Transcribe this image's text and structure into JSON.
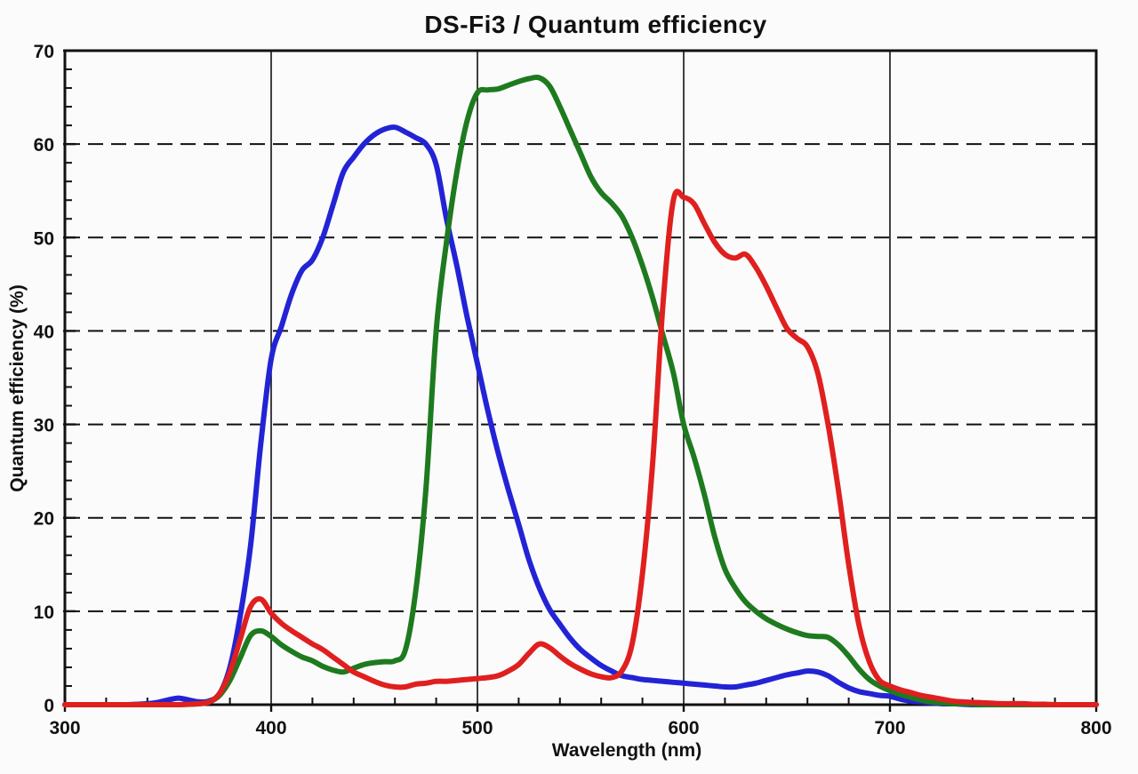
{
  "chart_data": {
    "type": "line",
    "title": "DS-Fi3 / Quantum efficiency",
    "xlabel": "Wavelength (nm)",
    "ylabel": "Quantum efficiency (%)",
    "xlim": [
      300,
      800
    ],
    "ylim": [
      0,
      70
    ],
    "x_ticks_major": [
      300,
      400,
      500,
      600,
      700,
      800
    ],
    "x_tick_labels": [
      "300",
      "400",
      "500",
      "600",
      "700",
      "800"
    ],
    "x_minor_step": 20,
    "y_ticks_major": [
      0,
      10,
      20,
      30,
      40,
      50,
      60,
      70
    ],
    "y_tick_labels": [
      "0",
      "10",
      "20",
      "30",
      "40",
      "50",
      "60",
      "70"
    ],
    "y_minor_step": 2,
    "grid": {
      "vertical_major": "solid",
      "horizontal_major": "dashed",
      "legend": "none"
    },
    "axis_color": "#111111",
    "x_start": 300,
    "x_step": 5,
    "series": [
      {
        "name": "blue-channel",
        "color": "#2323d6",
        "values": [
          0,
          0,
          0,
          0,
          0,
          0,
          0,
          0.05,
          0.1,
          0.25,
          0.5,
          0.7,
          0.5,
          0.3,
          0.4,
          1.2,
          4,
          9.5,
          17,
          28,
          37,
          40.5,
          44,
          46.5,
          47.6,
          50,
          53.5,
          57,
          58.6,
          60,
          61,
          61.6,
          61.8,
          61.3,
          60.7,
          60,
          57.8,
          52,
          47,
          41.5,
          36.5,
          31.5,
          27,
          23,
          19.3,
          15.5,
          12.5,
          10.2,
          8.6,
          7.1,
          5.9,
          5,
          4.2,
          3.6,
          3.1,
          2.9,
          2.7,
          2.6,
          2.5,
          2.4,
          2.3,
          2.2,
          2.1,
          2,
          1.9,
          1.9,
          2.1,
          2.3,
          2.6,
          2.9,
          3.2,
          3.4,
          3.6,
          3.5,
          3.1,
          2.4,
          1.8,
          1.4,
          1.2,
          1,
          0.9,
          0.6,
          0.4,
          0.3,
          0.2,
          0.1,
          0.1,
          0.05,
          0,
          0,
          0,
          0,
          0,
          0,
          0,
          0,
          0,
          0,
          0,
          0,
          0
        ]
      },
      {
        "name": "green-channel",
        "color": "#1e7a1e",
        "values": [
          0,
          0,
          0,
          0,
          0,
          0,
          0,
          0,
          0,
          0,
          0,
          0,
          0.05,
          0.1,
          0.3,
          1,
          2.6,
          5,
          7.4,
          7.9,
          7.3,
          6.4,
          5.7,
          5.1,
          4.7,
          4.1,
          3.7,
          3.5,
          3.9,
          4.3,
          4.5,
          4.6,
          4.7,
          5.8,
          12,
          23,
          40,
          49.5,
          57,
          62.5,
          65.5,
          65.8,
          65.9,
          66.3,
          66.7,
          67,
          67.1,
          66.2,
          64,
          61.5,
          59,
          56.5,
          54.8,
          53.7,
          52.3,
          50,
          47,
          43.5,
          39.5,
          35.5,
          30,
          26.5,
          22.5,
          18,
          14.5,
          12.5,
          11,
          10,
          9.2,
          8.6,
          8.1,
          7.7,
          7.4,
          7.3,
          7.2,
          6.4,
          5.2,
          3.8,
          2.7,
          2,
          1.5,
          1.1,
          0.8,
          0.5,
          0.3,
          0.2,
          0.1,
          0.1,
          0.05,
          0,
          0,
          0,
          0,
          0,
          0,
          0,
          0,
          0,
          0,
          0,
          0
        ]
      },
      {
        "name": "red-channel",
        "color": "#e01f1f",
        "values": [
          0,
          0,
          0,
          0,
          0,
          0,
          0,
          0,
          0,
          0,
          0,
          0,
          0.05,
          0.1,
          0.3,
          1.2,
          3.5,
          7,
          10.5,
          11.3,
          9.8,
          8.7,
          7.9,
          7.2,
          6.5,
          5.9,
          5.1,
          4.3,
          3.5,
          3,
          2.5,
          2.1,
          1.9,
          1.9,
          2.2,
          2.3,
          2.5,
          2.5,
          2.6,
          2.7,
          2.8,
          2.9,
          3.1,
          3.6,
          4.3,
          5.5,
          6.5,
          6.1,
          5.2,
          4.4,
          3.8,
          3.3,
          3,
          2.9,
          3.6,
          6.5,
          14,
          26,
          43,
          54,
          54.3,
          53.6,
          51.5,
          49.5,
          48.2,
          47.8,
          48.2,
          46.8,
          44.8,
          42.5,
          40.3,
          39.2,
          38.3,
          35.5,
          30,
          23,
          15,
          8.5,
          4.6,
          2.6,
          2,
          1.6,
          1.3,
          1,
          0.8,
          0.6,
          0.4,
          0.3,
          0.25,
          0.2,
          0.15,
          0.1,
          0.1,
          0.1,
          0.05,
          0.05,
          0,
          0,
          0,
          0,
          0
        ]
      }
    ]
  }
}
